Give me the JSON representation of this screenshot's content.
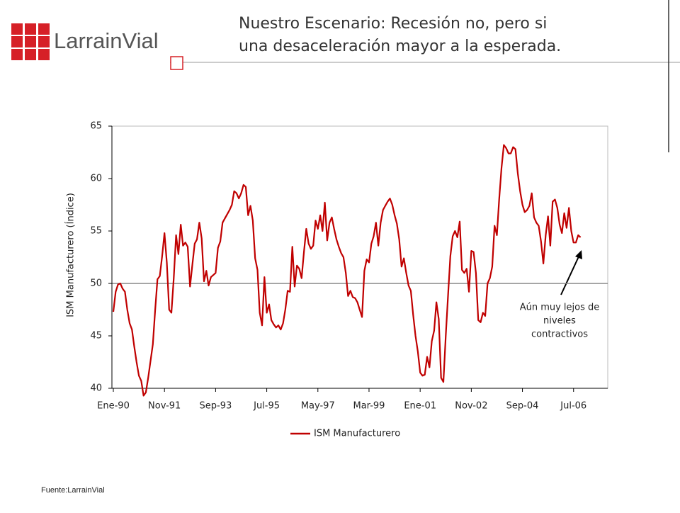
{
  "header": {
    "logo": "LarrainVial",
    "title_lines": [
      "Nuestro Escenario: Recesión no, pero si",
      "una desaceleración mayor a la esperada."
    ]
  },
  "chart_data": {
    "type": "line",
    "ylabel": "ISM Manufacturero (Índice)",
    "ylim": [
      40,
      65
    ],
    "yticks": [
      40,
      45,
      50,
      55,
      60,
      65
    ],
    "reference_line": 50,
    "annotation": [
      "Aún muy lejos de",
      "niveles",
      "contractivos"
    ],
    "categories": [
      "Ene-90",
      null,
      null,
      null,
      null,
      null,
      null,
      null,
      null,
      null,
      null,
      null,
      null,
      null,
      null,
      null,
      null,
      null,
      null,
      null,
      null,
      null,
      "Nov-91",
      null,
      null,
      null,
      null,
      null,
      null,
      null,
      null,
      null,
      null,
      null,
      null,
      null,
      null,
      null,
      null,
      null,
      null,
      null,
      null,
      null,
      "Sep-93",
      null,
      null,
      null,
      null,
      null,
      null,
      null,
      null,
      null,
      null,
      null,
      null,
      null,
      null,
      null,
      null,
      null,
      null,
      null,
      null,
      null,
      "Jul-95",
      null,
      null,
      null,
      null,
      null,
      null,
      null,
      null,
      null,
      null,
      null,
      null,
      null,
      null,
      null,
      null,
      null,
      null,
      null,
      null,
      null,
      "May-97",
      null,
      null,
      null,
      null,
      null,
      null,
      null,
      null,
      null,
      null,
      null,
      null,
      null,
      null,
      null,
      null,
      null,
      null,
      null,
      null,
      null,
      "Mar-99",
      null,
      null,
      null,
      null,
      null,
      null,
      null,
      null,
      null,
      null,
      null,
      null,
      null,
      null,
      null,
      null,
      null,
      null,
      null,
      null,
      null,
      "Ene-01",
      null,
      null,
      null,
      null,
      null,
      null,
      null,
      null,
      null,
      null,
      null,
      null,
      null,
      null,
      null,
      null,
      null,
      null,
      null,
      null,
      null,
      "Nov-02",
      null,
      null,
      null,
      null,
      null,
      null,
      null,
      null,
      null,
      null,
      null,
      null,
      null,
      null,
      null,
      null,
      null,
      null,
      null,
      null,
      null,
      "Sep-04",
      null,
      null,
      null,
      null,
      null,
      null,
      null,
      null,
      null,
      null,
      null,
      null,
      null,
      null,
      null,
      null,
      null,
      null,
      null,
      null,
      null,
      "Jul-06",
      null,
      null,
      null,
      null,
      null,
      null,
      null,
      null
    ],
    "series": [
      {
        "name": "ISM Manufacturero",
        "color": "#c00000",
        "values": [
          47.3,
          49.2,
          49.9,
          50.0,
          49.5,
          49.2,
          47.5,
          46.2,
          45.6,
          44.0,
          42.5,
          41.2,
          40.7,
          39.3,
          39.6,
          41.0,
          42.6,
          44.2,
          47.5,
          50.4,
          50.7,
          52.6,
          54.8,
          52.0,
          47.5,
          47.2,
          50.5,
          54.6,
          52.8,
          55.6,
          53.6,
          53.9,
          53.5,
          49.7,
          51.8,
          53.8,
          54.2,
          55.8,
          54.3,
          50.2,
          51.2,
          49.8,
          50.6,
          50.8,
          51.0,
          53.4,
          54.0,
          55.8,
          56.2,
          56.6,
          57.0,
          57.5,
          58.8,
          58.6,
          58.1,
          58.6,
          59.4,
          59.2,
          56.5,
          57.4,
          56.0,
          52.4,
          51.3,
          47.2,
          46.0,
          50.6,
          47.2,
          48.0,
          46.5,
          46.1,
          45.8,
          46.0,
          45.6,
          46.2,
          47.5,
          49.3,
          49.2,
          53.5,
          49.7,
          51.7,
          51.4,
          50.5,
          53.0,
          55.2,
          53.8,
          53.3,
          53.6,
          56.0,
          55.2,
          56.5,
          55.0,
          57.7,
          54.1,
          55.8,
          56.3,
          55.2,
          54.2,
          53.5,
          52.9,
          52.5,
          51.0,
          48.8,
          49.3,
          48.7,
          48.6,
          48.2,
          47.5,
          46.8,
          51.2,
          52.3,
          52.0,
          53.8,
          54.5,
          55.8,
          53.6,
          55.8,
          57.0,
          57.4,
          57.8,
          58.1,
          57.5,
          56.5,
          55.7,
          54.2,
          51.6,
          52.4,
          51.0,
          49.8,
          49.3,
          47.0,
          45.0,
          43.5,
          41.5,
          41.2,
          41.3,
          43.0,
          42.0,
          44.5,
          45.5,
          48.2,
          46.6,
          41.0,
          40.6,
          45.0,
          48.8,
          52.6,
          54.5,
          55.0,
          54.4,
          55.9,
          51.3,
          51.0,
          51.4,
          49.2,
          53.1,
          53.0,
          51.0,
          46.5,
          46.3,
          47.2,
          46.9,
          50.0,
          50.5,
          51.6,
          55.5,
          54.6,
          58.0,
          61.0,
          63.2,
          62.9,
          62.4,
          62.4,
          63.0,
          62.8,
          60.5,
          58.8,
          57.5,
          56.8,
          57.0,
          57.4,
          58.6,
          56.3,
          55.8,
          55.5,
          54.0,
          51.9,
          54.6,
          56.4,
          53.6,
          57.8,
          58.0,
          57.2,
          55.6,
          54.8,
          56.7,
          55.3,
          57.2,
          55.0,
          53.9,
          53.9,
          54.6,
          54.4,
          null,
          null,
          null,
          null,
          null
        ]
      }
    ]
  },
  "footer": {
    "source": "Fuente:LarrainVial"
  }
}
